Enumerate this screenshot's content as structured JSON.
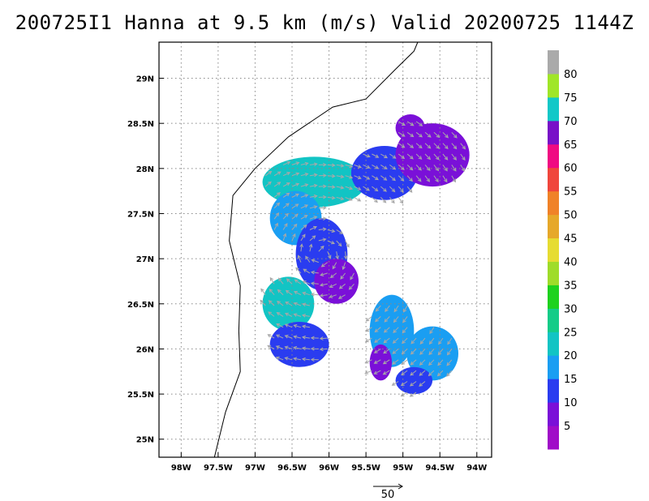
{
  "title": "200725I1 Hanna at 9.5 km (m/s) Valid 20200725 1144Z",
  "chart_data": {
    "type": "heatmap",
    "title": "200725I1 Hanna at 9.5 km (m/s) Valid 20200725 1144Z",
    "x_axis": {
      "range": [
        -98.3,
        -93.8
      ],
      "ticks": [
        -98,
        -97.5,
        -97,
        -96.5,
        -96,
        -95.5,
        -95,
        -94.5,
        -94
      ],
      "tick_labels": [
        "98W",
        "97.5W",
        "97W",
        "96.5W",
        "96W",
        "95.5W",
        "95W",
        "94.5W",
        "94W"
      ]
    },
    "y_axis": {
      "range": [
        24.8,
        29.4
      ],
      "ticks": [
        25,
        25.5,
        26,
        26.5,
        27,
        27.5,
        28,
        28.5,
        29
      ],
      "tick_labels": [
        "25N",
        "25.5N",
        "26N",
        "26.5N",
        "27N",
        "27.5N",
        "28N",
        "28.5N",
        "29N"
      ]
    },
    "grid": true,
    "grid_style": "dotted",
    "coastline": [
      [
        -97.55,
        24.8
      ],
      [
        -97.4,
        25.3
      ],
      [
        -97.2,
        25.75
      ],
      [
        -97.22,
        26.2
      ],
      [
        -97.2,
        26.7
      ],
      [
        -97.35,
        27.2
      ],
      [
        -97.3,
        27.7
      ],
      [
        -97.0,
        28.0
      ],
      [
        -96.55,
        28.35
      ],
      [
        -95.95,
        28.68
      ],
      [
        -95.5,
        28.77
      ],
      [
        -95.1,
        29.1
      ],
      [
        -94.85,
        29.3
      ],
      [
        -94.8,
        29.4
      ]
    ],
    "colorbar": {
      "labels": [
        "5",
        "10",
        "15",
        "20",
        "25",
        "30",
        "35",
        "40",
        "45",
        "50",
        "55",
        "60",
        "65",
        "70",
        "75",
        "80"
      ],
      "colors": [
        "#a00dc8",
        "#7a10d8",
        "#2a3cf0",
        "#1a9ef2",
        "#12c4c4",
        "#14cc88",
        "#1ed21e",
        "#9fdc2a",
        "#e6dc32",
        "#e6a82a",
        "#f08228",
        "#f0463c",
        "#f00a82",
        "#7810c8",
        "#12c8c8",
        "#a0e628",
        "#aaaaaa"
      ]
    },
    "reference_vector": {
      "label": "50",
      "value": 50
    },
    "wind_regions": [
      {
        "lon": -96.2,
        "lat": 27.85,
        "rx": 0.7,
        "ry": 0.28,
        "speed": 22
      },
      {
        "lon": -96.45,
        "lat": 27.45,
        "rx": 0.35,
        "ry": 0.3,
        "speed": 18
      },
      {
        "lon": -95.25,
        "lat": 27.95,
        "rx": 0.45,
        "ry": 0.3,
        "speed": 14
      },
      {
        "lon": -94.6,
        "lat": 28.15,
        "rx": 0.5,
        "ry": 0.35,
        "speed": 6
      },
      {
        "lon": -94.9,
        "lat": 28.45,
        "rx": 0.2,
        "ry": 0.15,
        "speed": 5
      },
      {
        "lon": -96.1,
        "lat": 27.05,
        "rx": 0.35,
        "ry": 0.4,
        "speed": 10
      },
      {
        "lon": -95.9,
        "lat": 26.75,
        "rx": 0.3,
        "ry": 0.25,
        "speed": 5
      },
      {
        "lon": -96.55,
        "lat": 26.5,
        "rx": 0.35,
        "ry": 0.3,
        "speed": 22
      },
      {
        "lon": -96.4,
        "lat": 26.05,
        "rx": 0.4,
        "ry": 0.25,
        "speed": 12
      },
      {
        "lon": -95.15,
        "lat": 26.2,
        "rx": 0.3,
        "ry": 0.4,
        "speed": 18
      },
      {
        "lon": -94.6,
        "lat": 25.95,
        "rx": 0.35,
        "ry": 0.3,
        "speed": 16
      },
      {
        "lon": -94.85,
        "lat": 25.65,
        "rx": 0.25,
        "ry": 0.15,
        "speed": 10
      },
      {
        "lon": -95.3,
        "lat": 25.85,
        "rx": 0.15,
        "ry": 0.2,
        "speed": 6
      }
    ]
  }
}
